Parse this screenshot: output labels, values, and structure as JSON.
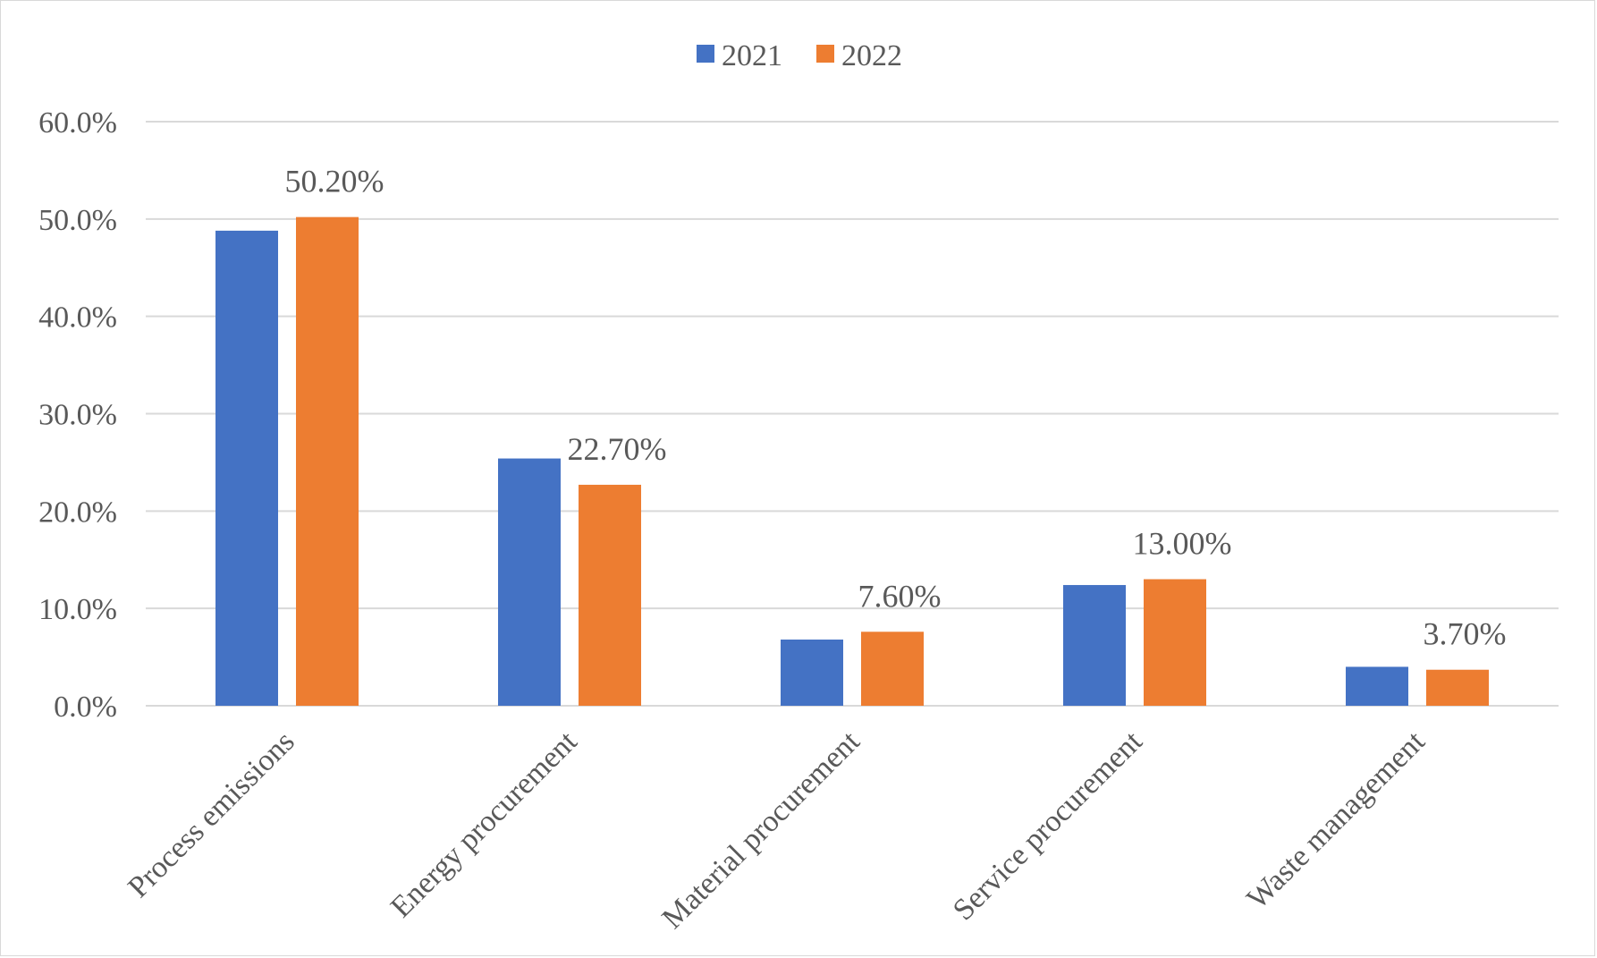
{
  "chart_data": {
    "type": "bar",
    "categories": [
      "Process emissions",
      "Energy procurement",
      "Material procurement",
      "Service procurement",
      "Waste management"
    ],
    "series": [
      {
        "name": "2021",
        "values": [
          48.8,
          25.4,
          6.8,
          12.4,
          4.0
        ],
        "color": "#4472c4"
      },
      {
        "name": "2022",
        "values": [
          50.2,
          22.7,
          7.6,
          13.0,
          3.7
        ],
        "color": "#ed7d31"
      }
    ],
    "data_labels": {
      "series": "2022",
      "texts": [
        "50.20%",
        "22.70%",
        "7.60%",
        "13.00%",
        "3.70%"
      ]
    },
    "y_ticks": [
      "0.0%",
      "10.0%",
      "20.0%",
      "30.0%",
      "40.0%",
      "50.0%",
      "60.0%"
    ],
    "ylim": [
      0,
      60
    ],
    "grid": true,
    "legend_position": "top-center",
    "title": "",
    "xlabel": "",
    "ylabel": ""
  }
}
